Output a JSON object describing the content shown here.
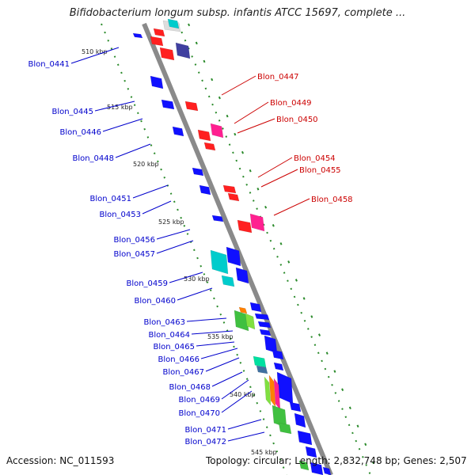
{
  "title": "Bifidobacterium longum subsp. infantis ATCC 15697, complete ...",
  "footer": {
    "accession": "Accession: NC_011593",
    "topology": "Topology: circular; Length: 2,832,748 bp; Genes: 2,507"
  },
  "colors": {
    "left_label": "#0000cc",
    "right_label": "#cc0000",
    "backbone": "#8a8a8a",
    "tick_marks": "#2a8a2a"
  },
  "ticks": [
    "510 kbp",
    "515 kbp",
    "520 kbp",
    "525 kbp",
    "530 kbp",
    "535 kbp",
    "540 kbp",
    "545 kbp"
  ],
  "left_genes": [
    "Blon_0441",
    "Blon_0445",
    "Blon_0446",
    "Blon_0448",
    "Blon_0451",
    "Blon_0453",
    "Blon_0456",
    "Blon_0457",
    "Blon_0459",
    "Blon_0460",
    "Blon_0463",
    "Blon_0464",
    "Blon_0465",
    "Blon_0466",
    "Blon_0467",
    "Blon_0468",
    "Blon_0469",
    "Blon_0470",
    "Blon_0471",
    "Blon_0472"
  ],
  "right_genes": [
    "Blon_0447",
    "Blon_0449",
    "Blon_0450",
    "Blon_0454",
    "Blon_0455",
    "Blon_0458"
  ]
}
